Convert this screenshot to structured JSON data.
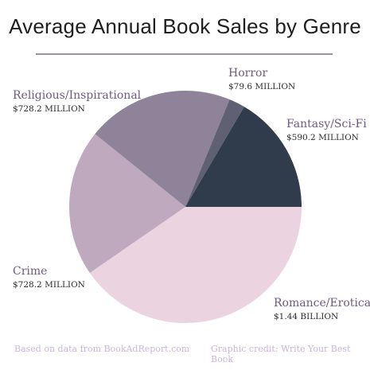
{
  "colors": {
    "label": "#6f5a81",
    "rule": "#9f8ea8",
    "footer": "#c9b7d8"
  },
  "chart_data": {
    "type": "pie",
    "title": "Average Annual Book Sales by Genre",
    "unit": "USD",
    "slices": [
      {
        "label": "Fantasy/Sci-Fi",
        "amount_text": "$590.2 MILLION",
        "value": 590.2,
        "color": "#303c4b"
      },
      {
        "label": "Romance/Erotica",
        "amount_text": "$1.44 BILLION",
        "value": 1440,
        "color": "#ecd3e0"
      },
      {
        "label": "Crime",
        "amount_text": "$728.2 MILLION",
        "value": 728.2,
        "color": "#bfa9bf"
      },
      {
        "label": "Religious/Inspirational",
        "amount_text": "$728.2 MILLION",
        "value": 728.2,
        "color": "#8e8398"
      },
      {
        "label": "Horror",
        "amount_text": "$79.6 MILLION",
        "value": 79.6,
        "color": "#5f6173"
      }
    ]
  },
  "footer": {
    "source": "Based on data from BookAdReport.com",
    "credit": "Graphic credit: Write Your Best Book"
  }
}
